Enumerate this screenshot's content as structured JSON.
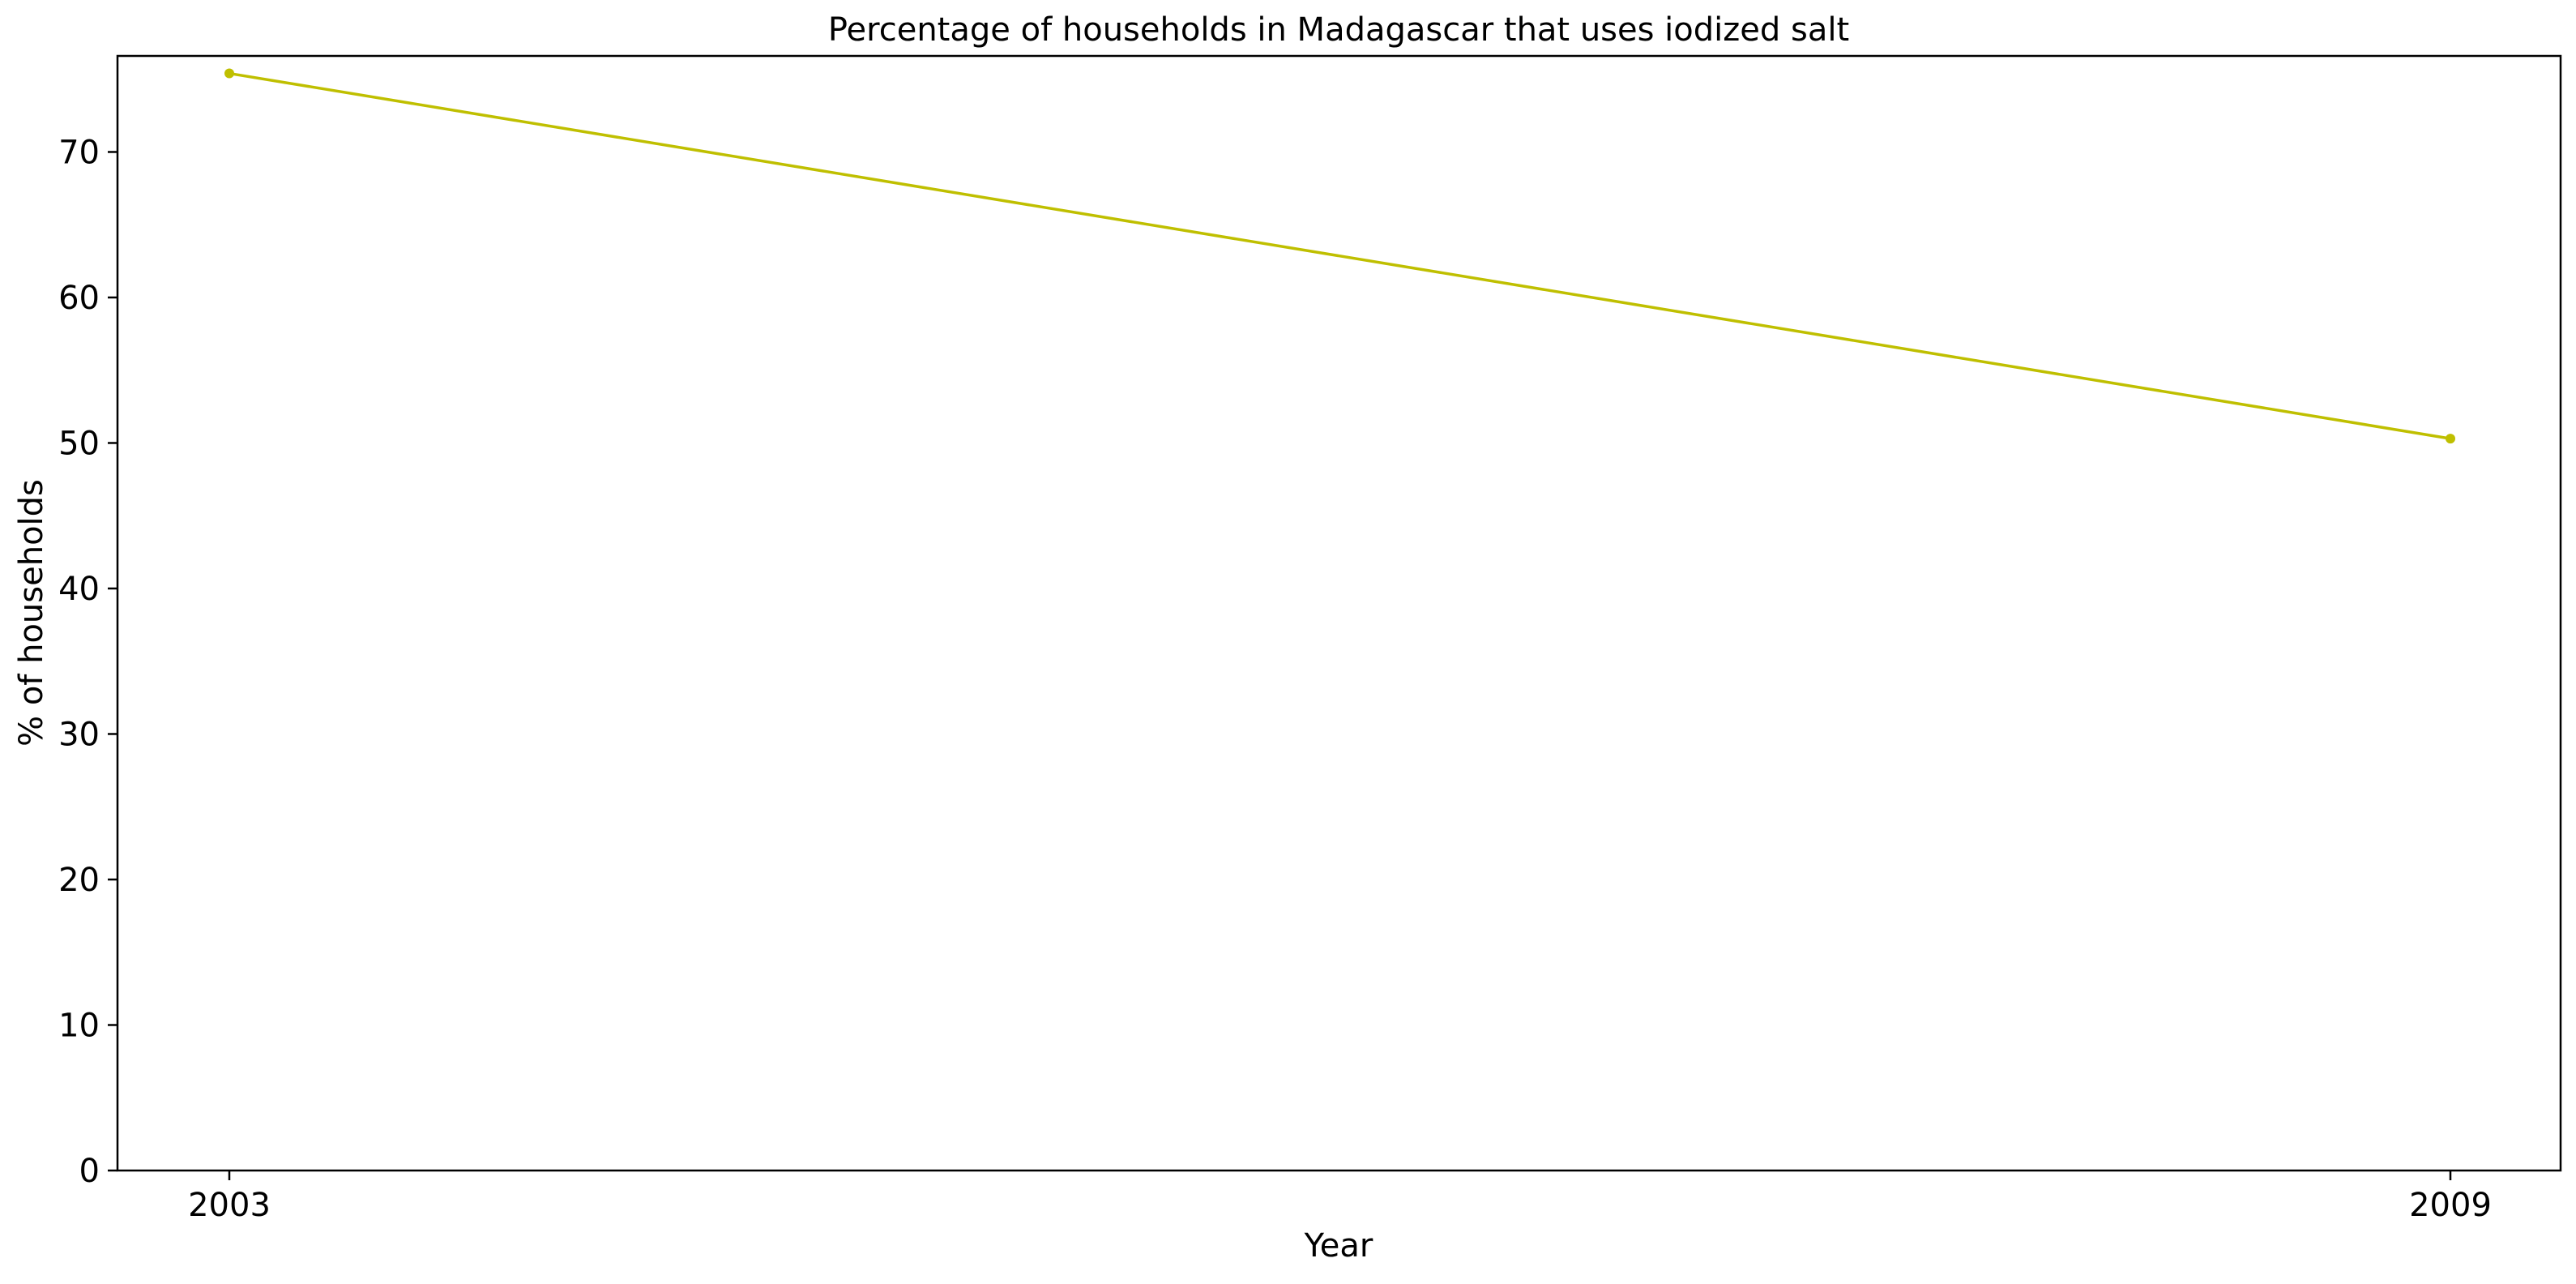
{
  "chart_data": {
    "type": "line",
    "title": "Percentage of households in Madagascar that uses iodized salt",
    "xlabel": "Year",
    "ylabel": "% of households",
    "x": [
      2003,
      2009
    ],
    "x_tick_labels": [
      "2003",
      "2009"
    ],
    "series": [
      {
        "values": [
          75.4,
          50.3
        ],
        "color": "#bfbf00"
      }
    ],
    "ylim": [
      0,
      76.6
    ],
    "y_ticks": [
      0,
      10,
      20,
      30,
      40,
      50,
      60,
      70
    ],
    "y_tick_labels": [
      "0",
      "10",
      "20",
      "30",
      "40",
      "50",
      "60",
      "70"
    ],
    "grid": false,
    "legend": "none"
  }
}
